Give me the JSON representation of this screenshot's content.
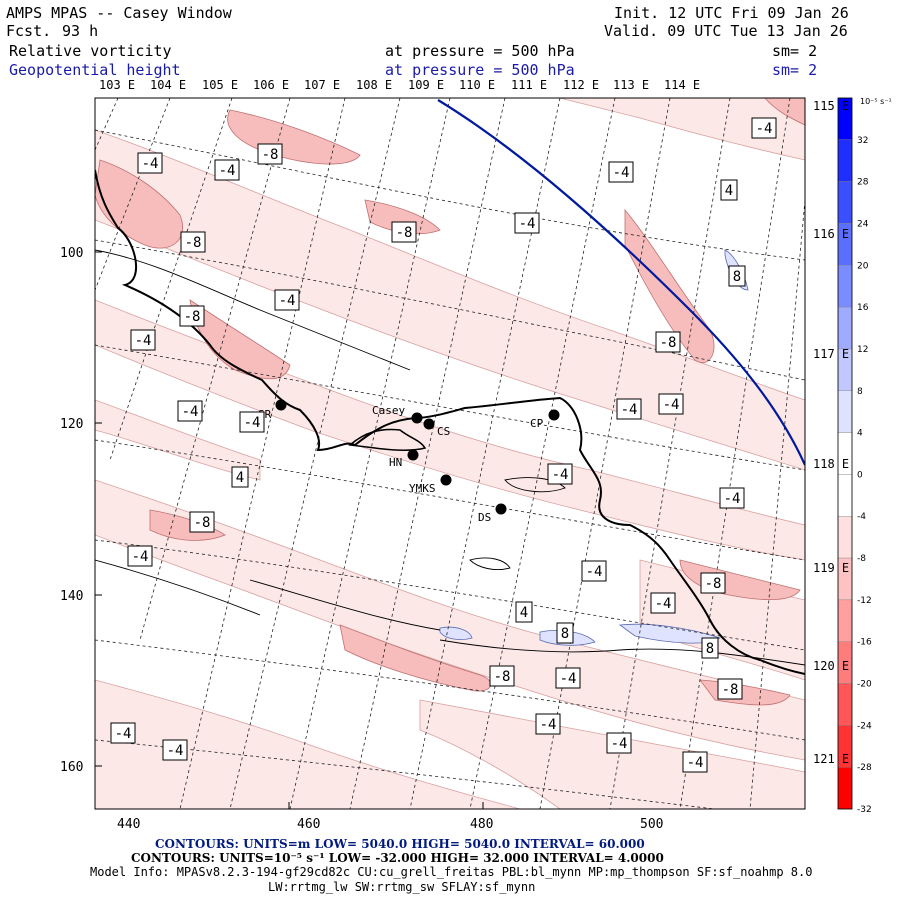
{
  "header": {
    "title": "AMPS MPAS -- Casey Window",
    "fcst_label": "Fcst.",
    "fcst_value": "93 h",
    "init": "Init. 12 UTC Fri 09 Jan 26",
    "valid": "Valid. 09 UTC Tue 13 Jan 26",
    "field1": "Relative vorticity",
    "field2": "Geopotential height",
    "pressure1": "at pressure =  500 hPa",
    "pressure2": "at pressure =  500 hPa",
    "sm1": "sm= 2",
    "sm2": "sm= 2"
  },
  "top_lon_labels": [
    "103 E",
    "104 E",
    "105 E",
    "106 E",
    "107 E",
    "108 E",
    "109 E",
    "110 E",
    "111 E",
    "112 E",
    "113 E",
    "114 E"
  ],
  "right_lon_labels": [
    "115 E",
    "116 E",
    "117 E",
    "118 E",
    "119 E",
    "120 E",
    "121 E"
  ],
  "y_ticks": [
    "100",
    "120",
    "140",
    "160"
  ],
  "x_ticks": [
    "440",
    "460",
    "480",
    "500"
  ],
  "stations": [
    "SR",
    "Casey",
    "CS",
    "HN",
    "YMKS",
    "DS",
    "CP"
  ],
  "contour_labels": [
    "-4",
    "-8",
    "4",
    "8"
  ],
  "colorbar": {
    "unit": "10⁻⁵ s⁻¹",
    "labels": [
      "32",
      "28",
      "24",
      "20",
      "16",
      "12",
      "8",
      "4",
      "0",
      "-4",
      "-8",
      "-12",
      "-16",
      "-20",
      "-24",
      "-28",
      "-32"
    ],
    "colors": [
      "#0000ff",
      "#1f2fff",
      "#3a4fff",
      "#5a6eff",
      "#7a8cff",
      "#9eabff",
      "#c0c8ff",
      "#dde2ff",
      "#ffffff",
      "#ffffff",
      "#ffe0e0",
      "#ffc2c2",
      "#ff9f9f",
      "#ff7c7c",
      "#ff5757",
      "#ff3333",
      "#ff0000"
    ]
  },
  "footer": {
    "line1": "CONTOURS:  UNITS=m  LOW=  5040.0          HIGH=  5040.0          INTERVAL=   60.000",
    "line2": "CONTOURS:  UNITS=10⁻⁵ s⁻¹   LOW= -32.000        HIGH=  32.000        INTERVAL=   4.0000",
    "line3": "Model Info: MPASv8.2.3-194-gf29cd82c CU:cu_grell_freitas PBL:bl_mynn MP:mp_thompson SF:sf_noahmp 8.0",
    "line4": "LW:rrtmg_lw SW:rrtmg_sw SFLAY:sf_mynn"
  }
}
